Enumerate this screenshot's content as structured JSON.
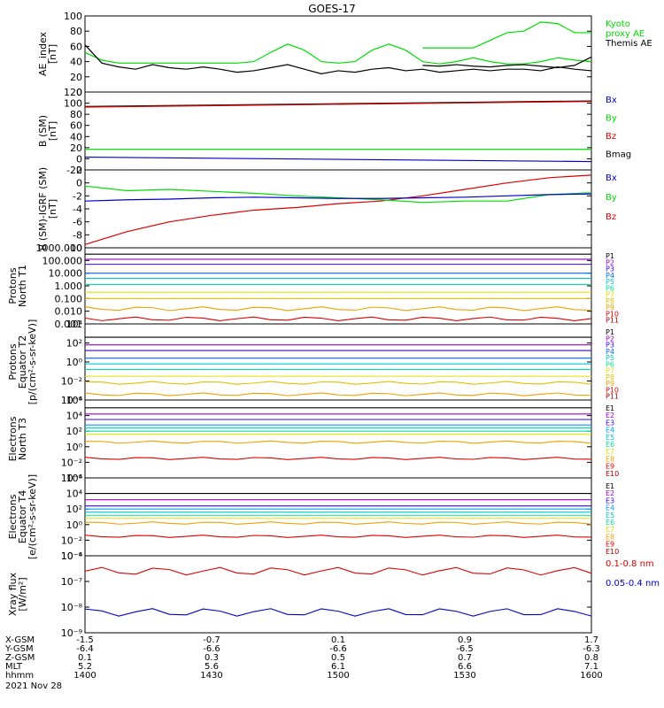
{
  "title": "GOES-17",
  "date_label": "2021 Nov 28",
  "colors": {
    "black": "#000000",
    "green": "#00dd00",
    "red": "#dd0000",
    "darkred": "#a00000",
    "blue": "#0000cc",
    "teal": "#00c8c8",
    "lightgreen": "#00e040",
    "yellow": "#e0e000",
    "orange": "#f0a000"
  },
  "xaxis": {
    "ticks": [
      {
        "t": 1400,
        "xgsm": "-1.5",
        "ygsm": "-6.4",
        "zgsm": "0.1",
        "mlt": "5.2",
        "hhmm": "1400"
      },
      {
        "t": 1430,
        "xgsm": "-0.7",
        "ygsm": "-6.6",
        "zgsm": "0.3",
        "mlt": "5.6",
        "hhmm": "1430"
      },
      {
        "t": 1500,
        "xgsm": "0.1",
        "ygsm": "-6.6",
        "zgsm": "0.5",
        "mlt": "6.1",
        "hhmm": "1500"
      },
      {
        "t": 1530,
        "xgsm": "0.9",
        "ygsm": "-6.5",
        "zgsm": "0.7",
        "mlt": "6.6",
        "hhmm": "1530"
      },
      {
        "t": 1600,
        "xgsm": "1.7",
        "ygsm": "-6.3",
        "zgsm": "0.8",
        "mlt": "7.1",
        "hhmm": "1600"
      }
    ],
    "row_labels": [
      "X-GSM",
      "Y-GSM",
      "Z-GSM",
      "MLT",
      "hhmm"
    ]
  },
  "chart_data": [
    {
      "type": "line",
      "ylabel": "AE_index\n[nT]",
      "ylim": [
        0,
        100
      ],
      "yticks": [
        "0",
        "20",
        "40",
        "60",
        "80",
        "100"
      ],
      "legend": [
        {
          "text": "Kyoto\nproxy AE",
          "color": "#00dd00"
        },
        {
          "text": "Themis AE",
          "color": "#000000"
        }
      ],
      "x": [
        0,
        2,
        4,
        6,
        8,
        10,
        12,
        14,
        16,
        18,
        20,
        22,
        24,
        26,
        28,
        30,
        32,
        34,
        36,
        38,
        40,
        42,
        44,
        46,
        48,
        50,
        52,
        54,
        56,
        58,
        60
      ],
      "series": [
        {
          "color": "#00dd00",
          "values": [
            52,
            42,
            38,
            38,
            38,
            38,
            38,
            38,
            38,
            38,
            40,
            52,
            63,
            55,
            40,
            38,
            40,
            55,
            63,
            55,
            40,
            37,
            40,
            45,
            40,
            37,
            37,
            40,
            45,
            42,
            40
          ]
        },
        {
          "color": "#000000",
          "values": [
            62,
            38,
            33,
            30,
            36,
            32,
            30,
            33,
            30,
            26,
            28,
            32,
            36,
            30,
            24,
            28,
            26,
            30,
            32,
            28,
            30,
            26,
            28,
            30,
            28,
            30,
            30,
            28,
            33,
            30,
            28
          ]
        }
      ],
      "x2": [
        40,
        42,
        44,
        46,
        48,
        50,
        52,
        54,
        56,
        58,
        60
      ],
      "series2": [
        {
          "color": "#00dd00",
          "values": [
            58,
            58,
            58,
            58,
            68,
            78,
            80,
            92,
            90,
            78,
            78
          ]
        },
        {
          "color": "#000000",
          "values": [
            35,
            34,
            36,
            34,
            33,
            35,
            36,
            34,
            32,
            35,
            46
          ]
        }
      ]
    },
    {
      "type": "line",
      "ylabel": "B (SM)\n[nT]",
      "ylim": [
        -20,
        120
      ],
      "yticks": [
        "-20",
        "0",
        "20",
        "40",
        "60",
        "80",
        "100",
        "120"
      ],
      "legend": [
        {
          "text": "Bx",
          "color": "#0000cc"
        },
        {
          "text": "By",
          "color": "#00dd00"
        },
        {
          "text": "Bz",
          "color": "#dd0000"
        },
        {
          "text": "Bmag",
          "color": "#000000"
        }
      ],
      "x": [
        0,
        60
      ],
      "series": [
        {
          "color": "#000000",
          "values": [
            94,
            104
          ]
        },
        {
          "color": "#dd0000",
          "values": [
            93,
            103
          ]
        },
        {
          "color": "#00dd00",
          "values": [
            17,
            17
          ]
        },
        {
          "color": "#0000cc",
          "values": [
            3,
            -5
          ]
        }
      ]
    },
    {
      "type": "line",
      "ylabel": "B (SM)-IGRF (SM)\n[nT]",
      "ylim": [
        -10,
        2
      ],
      "yticks": [
        "-10",
        "-8",
        "-6",
        "-4",
        "-2",
        "0",
        "2"
      ],
      "legend": [
        {
          "text": "Bx",
          "color": "#0000cc"
        },
        {
          "text": "By",
          "color": "#00dd00"
        },
        {
          "text": "Bz",
          "color": "#dd0000"
        }
      ],
      "x": [
        0,
        5,
        10,
        15,
        20,
        25,
        30,
        35,
        40,
        45,
        50,
        55,
        60
      ],
      "series": [
        {
          "color": "#dd0000",
          "values": [
            -9.5,
            -7.5,
            -6,
            -5,
            -4.2,
            -3.8,
            -3.2,
            -2.8,
            -2,
            -1,
            0,
            0.8,
            1.2
          ]
        },
        {
          "color": "#00dd00",
          "values": [
            -0.5,
            -1.2,
            -1.0,
            -1.3,
            -1.6,
            -2.0,
            -2.3,
            -2.6,
            -3.0,
            -2.8,
            -2.8,
            -1.8,
            -1.5
          ]
        },
        {
          "color": "#0000cc",
          "values": [
            -2.8,
            -2.6,
            -2.5,
            -2.3,
            -2.2,
            -2.3,
            -2.4,
            -2.4,
            -2.3,
            -2.2,
            -2.0,
            -1.8,
            -1.7
          ]
        }
      ]
    },
    {
      "type": "line",
      "ylabel": "Protons\nNorth T1",
      "scale": "log",
      "ylim_exp": [
        -3,
        3
      ],
      "yticks": [
        "0.001",
        "0.010",
        "0.100",
        "1.000",
        "10.000",
        "100.000",
        "1000.000"
      ],
      "legend": [
        {
          "text": "P1",
          "color": "#000000"
        },
        {
          "text": "P2",
          "color": "#9900cc"
        },
        {
          "text": "P3",
          "color": "#3300ff"
        },
        {
          "text": "P4",
          "color": "#0066ff"
        },
        {
          "text": "P5",
          "color": "#00c8c8"
        },
        {
          "text": "P6",
          "color": "#00e0a0"
        },
        {
          "text": "P7",
          "color": "#e0e000"
        },
        {
          "text": "P8",
          "color": "#e0c000"
        },
        {
          "text": "P9",
          "color": "#f0a000"
        },
        {
          "text": "P10",
          "color": "#dd0000"
        },
        {
          "text": "P11",
          "color": "#a00000"
        }
      ],
      "levels": [
        2.5,
        2.1,
        1.7,
        1.0,
        0.6,
        0.1,
        -0.5,
        -1.0,
        -1.8,
        -2.6
      ]
    },
    {
      "type": "line",
      "ylabel": "Protons\nEquator T2\n[p/(cm²-s-sr-keV)]",
      "scale": "log",
      "ylim_exp": [
        -4,
        4
      ],
      "yticks": [
        "10⁻⁴",
        "10⁻²",
        "10⁰",
        "10²",
        "10⁴"
      ],
      "legend": [
        {
          "text": "P1",
          "color": "#000000"
        },
        {
          "text": "P2",
          "color": "#9900cc"
        },
        {
          "text": "P3",
          "color": "#3300ff"
        },
        {
          "text": "P4",
          "color": "#0066ff"
        },
        {
          "text": "P5",
          "color": "#00c8c8"
        },
        {
          "text": "P6",
          "color": "#00e0a0"
        },
        {
          "text": "P7",
          "color": "#e0e000"
        },
        {
          "text": "P8",
          "color": "#e0c000"
        },
        {
          "text": "P9",
          "color": "#f0a000"
        },
        {
          "text": "P10",
          "color": "#dd0000"
        },
        {
          "text": "P11",
          "color": "#a00000"
        }
      ],
      "levels": [
        2.6,
        1.8,
        1.2,
        0.4,
        -0.2,
        -0.8,
        -1.5,
        -2.2,
        -3.4
      ]
    },
    {
      "type": "line",
      "ylabel": "Electrons\nNorth T3",
      "scale": "log",
      "ylim_exp": [
        -4,
        6
      ],
      "yticks": [
        "10⁻⁴",
        "10⁻²",
        "10⁰",
        "10²",
        "10⁴",
        "10⁶"
      ],
      "legend": [
        {
          "text": "E1",
          "color": "#000000"
        },
        {
          "text": "E2",
          "color": "#9900cc"
        },
        {
          "text": "E3",
          "color": "#3300ff"
        },
        {
          "text": "E4",
          "color": "#00a0ff"
        },
        {
          "text": "E5",
          "color": "#00c8c8"
        },
        {
          "text": "E6",
          "color": "#00e0a0"
        },
        {
          "text": "E7",
          "color": "#e0e000"
        },
        {
          "text": "E8",
          "color": "#f0a000"
        },
        {
          "text": "E9",
          "color": "#dd0000"
        },
        {
          "text": "E10",
          "color": "#a00000"
        }
      ],
      "levels": [
        5.0,
        4.2,
        3.5,
        2.8,
        2.4,
        2.0,
        1.6,
        0.6,
        -1.5
      ]
    },
    {
      "type": "line",
      "ylabel": "Electrons\nEquator T4\n[e/(cm²-s-sr-keV)]",
      "scale": "log",
      "ylim_exp": [
        -4,
        6
      ],
      "yticks": [
        "10⁻⁴",
        "10⁻²",
        "10⁰",
        "10²",
        "10⁴",
        "10⁶"
      ],
      "legend": [
        {
          "text": "E1",
          "color": "#000000"
        },
        {
          "text": "E2",
          "color": "#9900cc"
        },
        {
          "text": "E3",
          "color": "#3300ff"
        },
        {
          "text": "E4",
          "color": "#00a0ff"
        },
        {
          "text": "E5",
          "color": "#00c8c8"
        },
        {
          "text": "E6",
          "color": "#00e0a0"
        },
        {
          "text": "E7",
          "color": "#e0e000"
        },
        {
          "text": "E8",
          "color": "#f0a000"
        },
        {
          "text": "E9",
          "color": "#dd0000"
        },
        {
          "text": "E10",
          "color": "#a00000"
        }
      ],
      "levels": [
        4.0,
        3.2,
        2.4,
        2.0,
        1.6,
        1.2,
        0.8,
        0.2,
        -1.5
      ]
    },
    {
      "type": "line",
      "ylabel": "Xray flux\n[W/m²]",
      "scale": "log",
      "ylim_exp": [
        -9,
        -6
      ],
      "yticks": [
        "10⁻⁹",
        "10⁻⁸",
        "10⁻⁷",
        "10⁻⁶"
      ],
      "legend": [
        {
          "text": "0.1-0.8 nm",
          "color": "#dd0000"
        },
        {
          "text": "0.05-0.4 nm",
          "color": "#0000cc"
        }
      ],
      "levels": [
        -6.6,
        -8.2
      ]
    }
  ]
}
